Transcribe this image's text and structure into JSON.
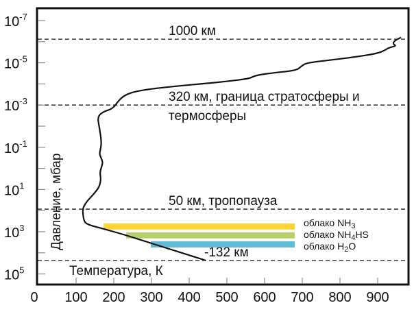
{
  "chart_data": {
    "type": "line",
    "xlabel": "Температура, К",
    "ylabel": "Давление, мбар",
    "xlim": [
      0,
      970
    ],
    "ylim_log10": [
      -7.6,
      5.5
    ],
    "y_scale": "log",
    "y_inverted": true,
    "grid": false,
    "x_ticks": [
      0,
      100,
      200,
      300,
      400,
      500,
      600,
      700,
      800,
      900
    ],
    "y_ticks": [
      {
        "exp": -7,
        "base": "10",
        "sup": "-7"
      },
      {
        "exp": -5,
        "base": "10",
        "sup": "-5"
      },
      {
        "exp": -3,
        "base": "10",
        "sup": "-3"
      },
      {
        "exp": -1,
        "base": "10",
        "sup": "-1"
      },
      {
        "exp": 1,
        "base": "10",
        "sup": "1"
      },
      {
        "exp": 3,
        "base": "10",
        "sup": "3"
      },
      {
        "exp": 5,
        "base": "10",
        "sup": "5"
      }
    ],
    "y_minor_ticks": [
      -6,
      -4,
      -2,
      0,
      2,
      4
    ],
    "series": [
      {
        "color": "#111111",
        "points_K_log10mbar": [
          [
            444,
            4.36
          ],
          [
            380,
            4.0
          ],
          [
            300,
            3.55
          ],
          [
            230,
            3.15
          ],
          [
            170,
            2.85
          ],
          [
            128,
            2.65
          ],
          [
            120,
            2.45
          ],
          [
            117,
            1.93
          ],
          [
            125,
            1.65
          ],
          [
            135,
            1.44
          ],
          [
            150,
            1.15
          ],
          [
            162,
            0.86
          ],
          [
            166,
            0.5
          ],
          [
            163,
            0.2
          ],
          [
            168,
            -0.1
          ],
          [
            171,
            -0.3
          ],
          [
            165,
            -0.55
          ],
          [
            162,
            -0.7
          ],
          [
            166,
            -1.0
          ],
          [
            167,
            -1.3
          ],
          [
            163,
            -1.8
          ],
          [
            160,
            -2.1
          ],
          [
            158,
            -2.35
          ],
          [
            162,
            -2.55
          ],
          [
            175,
            -2.7
          ],
          [
            198,
            -2.84
          ],
          [
            211,
            -3.17
          ],
          [
            225,
            -3.42
          ],
          [
            250,
            -3.62
          ],
          [
            300,
            -3.77
          ],
          [
            380,
            -3.92
          ],
          [
            444,
            -4.02
          ],
          [
            500,
            -4.12
          ],
          [
            560,
            -4.25
          ],
          [
            575,
            -4.4
          ],
          [
            620,
            -4.52
          ],
          [
            685,
            -4.64
          ],
          [
            698,
            -4.85
          ],
          [
            712,
            -5.0
          ],
          [
            780,
            -5.14
          ],
          [
            850,
            -5.3
          ],
          [
            900,
            -5.45
          ],
          [
            920,
            -5.6
          ],
          [
            930,
            -5.72
          ],
          [
            950,
            -5.8
          ],
          [
            940,
            -5.9
          ],
          [
            945,
            -6.05
          ],
          [
            962,
            -6.2
          ]
        ]
      }
    ],
    "reference_lines": [
      {
        "label": "1000 км",
        "label2": "",
        "log10_p": -6.12
      },
      {
        "label": "320 км, граница стратосферы и",
        "label2": "термосферы",
        "log10_p": -3.0
      },
      {
        "label": "50 км, тропопауза",
        "label2": "",
        "log10_p": 1.93
      },
      {
        "label": "-132 км",
        "label2": "",
        "log10_p": 4.36
      }
    ],
    "clouds": [
      {
        "label": "облако NH",
        "sub": "3",
        "tail": "",
        "x_start_K": 173,
        "x_end_K": 680,
        "log10_p": 2.75,
        "color": "#fdd435"
      },
      {
        "label": "облако NH",
        "sub": "4",
        "tail": "HS",
        "x_start_K": 233,
        "x_end_K": 680,
        "log10_p": 3.17,
        "color": "#b9d16a"
      },
      {
        "label": "облако H",
        "sub": "2",
        "tail": "O",
        "x_start_K": 298,
        "x_end_K": 680,
        "log10_p": 3.6,
        "color": "#5fbcd3"
      }
    ]
  }
}
